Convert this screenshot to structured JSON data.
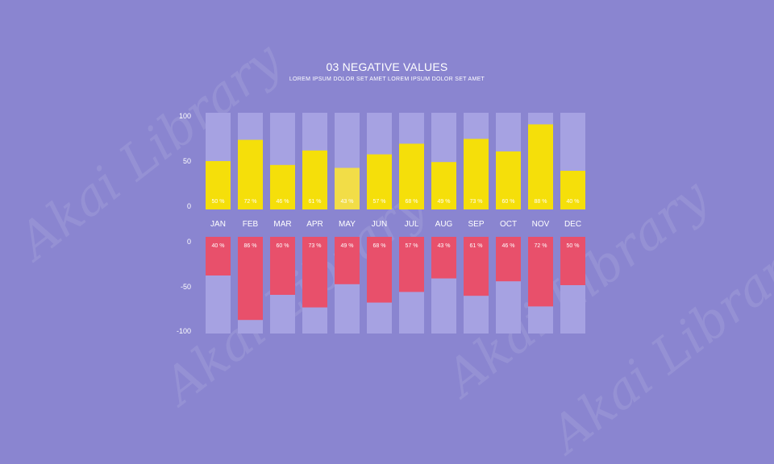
{
  "title": "03 NEGATIVE VALUES",
  "subtitle": "LOREM IPSUM DOLOR SET AMET LOREM IPSUM DOLOR SET AMET",
  "watermark": "Akai Library",
  "colors": {
    "background": "#8a85d0",
    "track": "#a6a2e2",
    "positive": "#f5df0a",
    "positive_highlight": "#f2dd47",
    "negative": "#e8506b",
    "text": "#ffffff"
  },
  "chart_data": [
    {
      "type": "bar",
      "categories": [
        "JAN",
        "FEB",
        "MAR",
        "APR",
        "MAY",
        "JUN",
        "JUL",
        "AUG",
        "SEP",
        "OCT",
        "NOV",
        "DEC"
      ],
      "values": [
        50,
        72,
        46,
        61,
        43,
        57,
        68,
        49,
        73,
        60,
        88,
        40
      ],
      "data_labels": [
        "50 %",
        "72 %",
        "46 %",
        "61 %",
        "43 %",
        "57 %",
        "68 %",
        "49 %",
        "73 %",
        "60 %",
        "88 %",
        "40 %"
      ],
      "yticks": [
        "100",
        "50",
        "0"
      ],
      "ylim": [
        0,
        100
      ],
      "highlight_index": 4
    },
    {
      "type": "bar",
      "categories": [
        "JAN",
        "FEB",
        "MAR",
        "APR",
        "MAY",
        "JUN",
        "JUL",
        "AUG",
        "SEP",
        "OCT",
        "NOV",
        "DEC"
      ],
      "values": [
        -40,
        -86,
        -60,
        -73,
        -49,
        -68,
        -57,
        -43,
        -61,
        -46,
        -72,
        -50
      ],
      "data_labels": [
        "40 %",
        "86 %",
        "60 %",
        "73 %",
        "49 %",
        "68 %",
        "57 %",
        "43 %",
        "61 %",
        "46 %",
        "72 %",
        "50 %"
      ],
      "yticks": [
        "0",
        "-50",
        "-100"
      ],
      "ylim": [
        -100,
        0
      ]
    }
  ]
}
